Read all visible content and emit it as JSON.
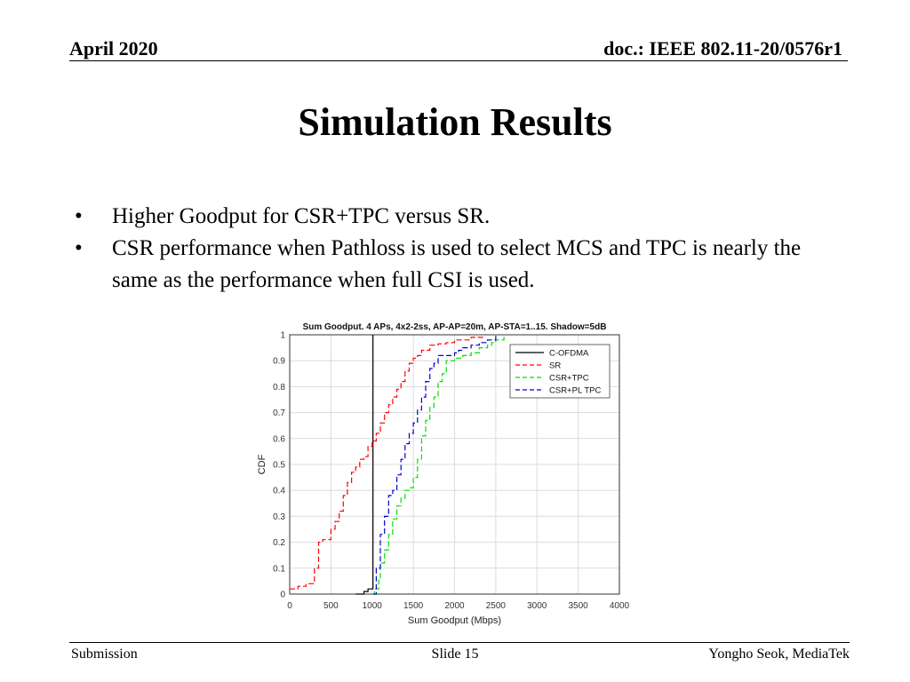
{
  "header": {
    "date": "April 2020",
    "doc": "doc.: IEEE 802.11-20/0576r1"
  },
  "slide_title": "Simulation Results",
  "bullets": [
    {
      "symbol": "•",
      "text": "Higher Goodput for CSR+TPC versus SR."
    },
    {
      "symbol": "•",
      "text": "CSR performance when Pathloss is used to select MCS and TPC is nearly the same as the performance when full CSI is used."
    }
  ],
  "footer": {
    "left": "Submission",
    "center": "Slide 15",
    "right": "Yongho Seok, MediaTek"
  },
  "chart_data": {
    "type": "line",
    "title": "Sum Goodput. 4 APs, 4x2-2ss, AP-AP=20m, AP-STA=1..15. Shadow=5dB",
    "xlabel": "Sum Goodput (Mbps)",
    "ylabel": "CDF",
    "xlim": [
      0,
      4000
    ],
    "ylim": [
      0,
      1
    ],
    "xticks": [
      0,
      500,
      1000,
      1500,
      2000,
      2500,
      3000,
      3500,
      4000
    ],
    "yticks": [
      0,
      0.1,
      0.2,
      0.3,
      0.4,
      0.5,
      0.6,
      0.7,
      0.8,
      0.9,
      1
    ],
    "grid": true,
    "legend_position": "top-right",
    "series": [
      {
        "name": "C-OFDMA",
        "color": "#000000",
        "dash": "solid",
        "x": [
          800,
          900,
          950,
          1000,
          1010,
          1010
        ],
        "y": [
          0.0,
          0.01,
          0.02,
          0.02,
          0.03,
          1.0
        ]
      },
      {
        "name": "SR",
        "color": "#ff0000",
        "dash": "dashed",
        "x": [
          0,
          100,
          200,
          300,
          350,
          400,
          500,
          550,
          600,
          650,
          700,
          750,
          800,
          850,
          900,
          950,
          1000,
          1050,
          1100,
          1150,
          1200,
          1250,
          1300,
          1350,
          1400,
          1450,
          1500,
          1550,
          1600,
          1700,
          1800,
          1900,
          2000,
          2200,
          2350
        ],
        "y": [
          0.02,
          0.03,
          0.04,
          0.1,
          0.2,
          0.21,
          0.25,
          0.28,
          0.32,
          0.38,
          0.43,
          0.47,
          0.49,
          0.52,
          0.53,
          0.57,
          0.59,
          0.62,
          0.66,
          0.7,
          0.73,
          0.76,
          0.79,
          0.82,
          0.86,
          0.89,
          0.91,
          0.92,
          0.94,
          0.96,
          0.965,
          0.97,
          0.98,
          0.99,
          1.0
        ]
      },
      {
        "name": "CSR+TPC",
        "color": "#00e000",
        "dash": "dashed",
        "x": [
          1000,
          1030,
          1080,
          1100,
          1150,
          1200,
          1250,
          1300,
          1350,
          1400,
          1450,
          1500,
          1550,
          1600,
          1650,
          1700,
          1750,
          1800,
          1850,
          1900,
          2000,
          2100,
          2200,
          2300,
          2400,
          2450,
          2500,
          2600
        ],
        "y": [
          0.0,
          0.02,
          0.06,
          0.12,
          0.17,
          0.23,
          0.29,
          0.34,
          0.37,
          0.4,
          0.41,
          0.45,
          0.52,
          0.61,
          0.67,
          0.72,
          0.76,
          0.82,
          0.85,
          0.9,
          0.91,
          0.92,
          0.93,
          0.95,
          0.96,
          0.97,
          0.98,
          1.0
        ]
      },
      {
        "name": "CSR+PL TPC",
        "color": "#0000cc",
        "dash": "dashed",
        "x": [
          1010,
          1050,
          1100,
          1150,
          1200,
          1250,
          1300,
          1350,
          1400,
          1450,
          1500,
          1550,
          1600,
          1650,
          1700,
          1750,
          1800,
          1900,
          2000,
          2050,
          2100,
          2200,
          2300,
          2400,
          2500
        ],
        "y": [
          0.0,
          0.1,
          0.23,
          0.3,
          0.38,
          0.4,
          0.46,
          0.52,
          0.58,
          0.62,
          0.66,
          0.71,
          0.76,
          0.82,
          0.87,
          0.89,
          0.92,
          0.92,
          0.93,
          0.94,
          0.95,
          0.96,
          0.97,
          0.98,
          1.0
        ]
      }
    ]
  }
}
